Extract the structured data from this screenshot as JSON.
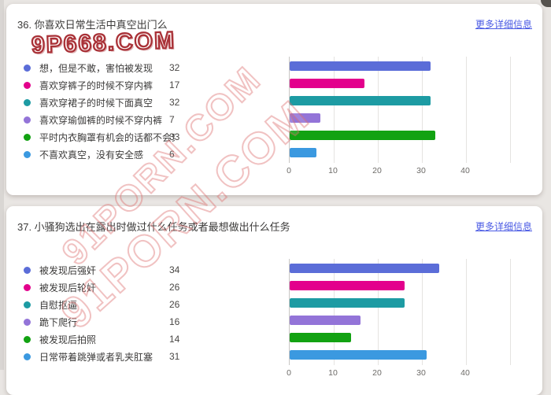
{
  "watermarks": {
    "logo_text": "9P668.COM",
    "diagonal_text": "91PORN.COM"
  },
  "ui": {
    "more_details_label": "更多详细信息"
  },
  "questions": [
    {
      "title": "36. 你喜欢日常生活中真空出门么",
      "options": [
        {
          "label": "想，但是不敢，害怕被发现",
          "count": 32,
          "color": "#5b6dd8"
        },
        {
          "label": "喜欢穿裤子的时候不穿内裤",
          "count": 17,
          "color": "#e3008c"
        },
        {
          "label": "喜欢穿裙子的时候下面真空",
          "count": 32,
          "color": "#1d9ba3"
        },
        {
          "label": "喜欢穿瑜伽裤的时候不穿内裤",
          "count": 7,
          "color": "#9374d8"
        },
        {
          "label": "平时内衣胸罩有机会的话都不会穿",
          "count": 33,
          "color": "#12a212"
        },
        {
          "label": "不喜欢真空，没有安全感",
          "count": 6,
          "color": "#3b99e0"
        }
      ],
      "axis_ticks": [
        "0",
        "10",
        "20",
        "30",
        "40"
      ]
    },
    {
      "title": "37. 小骚狗选出在露出时做过什么任务或者最想做出什么任务",
      "options": [
        {
          "label": "被发现后强奸",
          "count": 34,
          "color": "#5b6dd8"
        },
        {
          "label": "被发现后轮奸",
          "count": 26,
          "color": "#e3008c"
        },
        {
          "label": "自慰抠逼",
          "count": 26,
          "color": "#1d9ba3"
        },
        {
          "label": "跪下爬行",
          "count": 16,
          "color": "#9374d8"
        },
        {
          "label": "被发现后拍照",
          "count": 14,
          "color": "#12a212"
        },
        {
          "label": "日常带着跳弹或者乳夹肛塞",
          "count": 31,
          "color": "#3b99e0"
        }
      ],
      "axis_ticks": [
        "0",
        "10",
        "20",
        "30",
        "40"
      ]
    }
  ],
  "chart_data": [
    {
      "type": "bar",
      "orientation": "horizontal",
      "title": "36. 你喜欢日常生活中真空出门么",
      "categories": [
        "想，但是不敢，害怕被发现",
        "喜欢穿裤子的时候不穿内裤",
        "喜欢穿裙子的时候下面真空",
        "喜欢穿瑜伽裤的时候不穿内裤",
        "平时内衣胸罩有机会的话都不会穿",
        "不喜欢真空，没有安全感"
      ],
      "values": [
        32,
        17,
        32,
        7,
        33,
        6
      ],
      "xlabel": "",
      "ylabel": "",
      "xlim": [
        0,
        50
      ],
      "xticks": [
        0,
        10,
        20,
        30,
        40
      ],
      "grid": true,
      "legend_position": "left"
    },
    {
      "type": "bar",
      "orientation": "horizontal",
      "title": "37. 小骚狗选出在露出时做过什么任务或者最想做出什么任务",
      "categories": [
        "被发现后强奸",
        "被发现后轮奸",
        "自慰抠逼",
        "跪下爬行",
        "被发现后拍照",
        "日常带着跳弹或者乳夹肛塞"
      ],
      "values": [
        34,
        26,
        26,
        16,
        14,
        31
      ],
      "xlabel": "",
      "ylabel": "",
      "xlim": [
        0,
        50
      ],
      "xticks": [
        0,
        10,
        20,
        30,
        40
      ],
      "grid": true,
      "legend_position": "left"
    }
  ]
}
